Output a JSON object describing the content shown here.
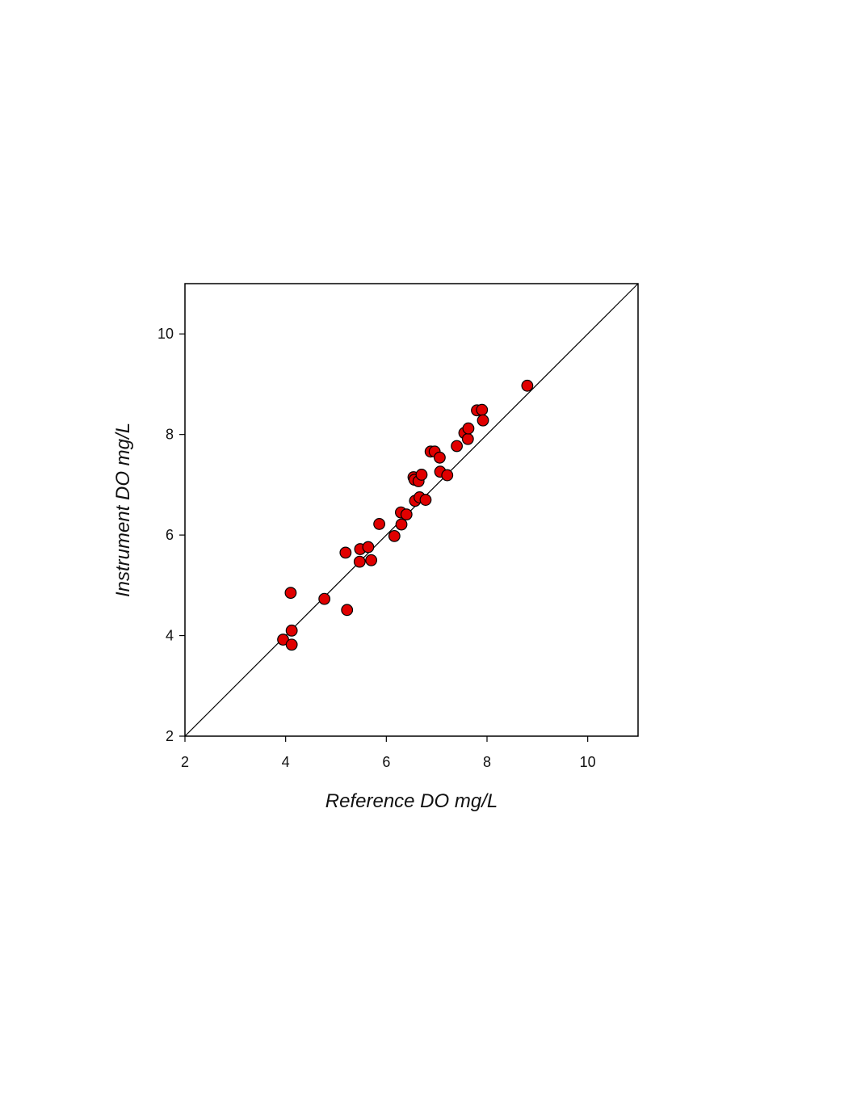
{
  "chart_data": {
    "type": "scatter",
    "xlabel": "Reference DO mg/L",
    "ylabel": "Instrument DO mg/L",
    "xlim": [
      2,
      11
    ],
    "ylim": [
      2,
      11
    ],
    "xticks": [
      2,
      4,
      6,
      8,
      10
    ],
    "yticks": [
      2,
      4,
      6,
      8,
      10
    ],
    "grid": false,
    "reference_line": {
      "type": "1:1",
      "from": [
        2,
        2
      ],
      "to": [
        11,
        11
      ]
    },
    "marker_color": "#e00000",
    "marker_edge_color": "#000000",
    "points": [
      {
        "x": 3.95,
        "y": 3.92
      },
      {
        "x": 4.12,
        "y": 3.82
      },
      {
        "x": 4.12,
        "y": 4.1
      },
      {
        "x": 4.1,
        "y": 4.85
      },
      {
        "x": 4.77,
        "y": 4.73
      },
      {
        "x": 5.22,
        "y": 4.51
      },
      {
        "x": 5.19,
        "y": 5.65
      },
      {
        "x": 5.47,
        "y": 5.47
      },
      {
        "x": 5.48,
        "y": 5.72
      },
      {
        "x": 5.64,
        "y": 5.76
      },
      {
        "x": 5.7,
        "y": 5.5
      },
      {
        "x": 5.86,
        "y": 6.22
      },
      {
        "x": 6.16,
        "y": 5.98
      },
      {
        "x": 6.3,
        "y": 6.21
      },
      {
        "x": 6.29,
        "y": 6.45
      },
      {
        "x": 6.4,
        "y": 6.41
      },
      {
        "x": 6.57,
        "y": 6.68
      },
      {
        "x": 6.66,
        "y": 6.75
      },
      {
        "x": 6.78,
        "y": 6.7
      },
      {
        "x": 6.54,
        "y": 7.15
      },
      {
        "x": 6.56,
        "y": 7.1
      },
      {
        "x": 6.64,
        "y": 7.07
      },
      {
        "x": 6.7,
        "y": 7.2
      },
      {
        "x": 7.07,
        "y": 7.26
      },
      {
        "x": 7.21,
        "y": 7.19
      },
      {
        "x": 6.88,
        "y": 7.66
      },
      {
        "x": 6.96,
        "y": 7.66
      },
      {
        "x": 7.06,
        "y": 7.54
      },
      {
        "x": 7.4,
        "y": 7.77
      },
      {
        "x": 7.55,
        "y": 8.03
      },
      {
        "x": 7.62,
        "y": 7.91
      },
      {
        "x": 7.63,
        "y": 8.12
      },
      {
        "x": 7.8,
        "y": 8.48
      },
      {
        "x": 7.9,
        "y": 8.49
      },
      {
        "x": 7.92,
        "y": 8.28
      },
      {
        "x": 8.8,
        "y": 8.97
      }
    ]
  }
}
